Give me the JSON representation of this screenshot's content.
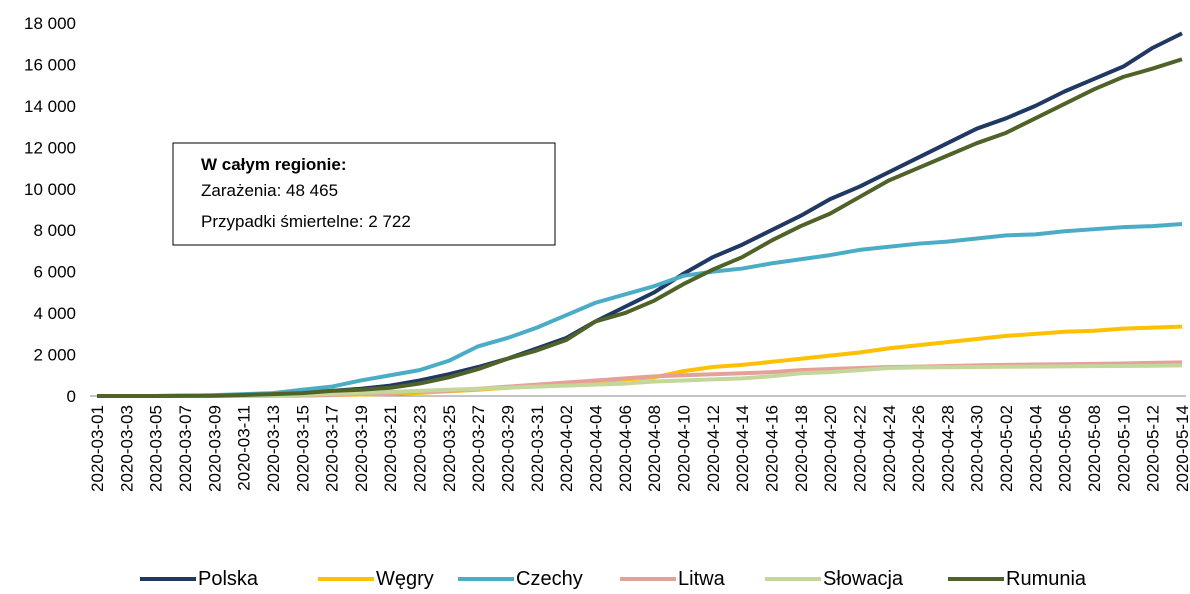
{
  "chart_data": {
    "type": "line",
    "annotation": {
      "title": "W całym regionie:",
      "lines": [
        "Zarażenia: 48 465",
        "Przypadki śmiertelne: 2 722"
      ]
    },
    "categories": [
      "2020-03-01",
      "2020-03-03",
      "2020-03-05",
      "2020-03-07",
      "2020-03-09",
      "2020-03-11",
      "2020-03-13",
      "2020-03-15",
      "2020-03-17",
      "2020-03-19",
      "2020-03-21",
      "2020-03-23",
      "2020-03-25",
      "2020-03-27",
      "2020-03-29",
      "2020-03-31",
      "2020-04-02",
      "2020-04-04",
      "2020-04-06",
      "2020-04-08",
      "2020-04-10",
      "2020-04-12",
      "2020-04-14",
      "2020-04-16",
      "2020-04-18",
      "2020-04-20",
      "2020-04-22",
      "2020-04-24",
      "2020-04-26",
      "2020-04-28",
      "2020-04-30",
      "2020-05-02",
      "2020-05-04",
      "2020-05-06",
      "2020-05-08",
      "2020-05-10",
      "2020-05-12",
      "2020-05-14"
    ],
    "series": [
      {
        "name": "Polska",
        "color": "#1f3864",
        "values": [
          0,
          0,
          0,
          10,
          20,
          30,
          70,
          150,
          250,
          350,
          500,
          750,
          1050,
          1400,
          1800,
          2300,
          2800,
          3600,
          4300,
          5000,
          5900,
          6700,
          7300,
          8000,
          8700,
          9500,
          10100,
          10800,
          11500,
          12200,
          12900,
          13400,
          14000,
          14700,
          15300,
          15900,
          16800,
          17500
        ]
      },
      {
        "name": "Węgry",
        "color": "#ffc000",
        "values": [
          0,
          0,
          0,
          0,
          0,
          10,
          20,
          30,
          50,
          70,
          100,
          150,
          230,
          300,
          400,
          500,
          600,
          700,
          800,
          900,
          1200,
          1400,
          1500,
          1650,
          1800,
          1950,
          2100,
          2300,
          2450,
          2600,
          2750,
          2900,
          3000,
          3100,
          3150,
          3250,
          3300,
          3350
        ]
      },
      {
        "name": "Czechy",
        "color": "#4bacc6",
        "values": [
          0,
          0,
          0,
          10,
          40,
          90,
          140,
          300,
          450,
          750,
          1000,
          1250,
          1700,
          2400,
          2800,
          3300,
          3900,
          4500,
          4900,
          5300,
          5800,
          6000,
          6150,
          6400,
          6600,
          6800,
          7050,
          7200,
          7350,
          7450,
          7600,
          7750,
          7800,
          7950,
          8050,
          8150,
          8200,
          8300
        ]
      },
      {
        "name": "Litwa",
        "color": "#e6a09a",
        "values": [
          0,
          0,
          0,
          0,
          0,
          5,
          10,
          20,
          50,
          100,
          150,
          200,
          250,
          350,
          450,
          550,
          650,
          750,
          850,
          950,
          1000,
          1050,
          1100,
          1150,
          1250,
          1300,
          1350,
          1400,
          1420,
          1450,
          1480,
          1500,
          1520,
          1530,
          1550,
          1570,
          1600,
          1620
        ]
      },
      {
        "name": "Słowacja",
        "color": "#c4d79b",
        "values": [
          0,
          0,
          0,
          0,
          5,
          10,
          30,
          60,
          100,
          150,
          200,
          250,
          300,
          350,
          400,
          450,
          500,
          550,
          600,
          700,
          750,
          800,
          850,
          950,
          1100,
          1150,
          1250,
          1350,
          1380,
          1390,
          1400,
          1410,
          1420,
          1430,
          1440,
          1450,
          1460,
          1480
        ]
      },
      {
        "name": "Rumunia",
        "color": "#4f6228",
        "values": [
          0,
          0,
          0,
          5,
          15,
          50,
          90,
          140,
          250,
          300,
          400,
          600,
          900,
          1300,
          1800,
          2200,
          2700,
          3600,
          4000,
          4600,
          5400,
          6100,
          6700,
          7500,
          8200,
          8800,
          9600,
          10400,
          11000,
          11600,
          12200,
          12700,
          13400,
          14100,
          14800,
          15400,
          15800,
          16250
        ]
      }
    ],
    "ylim": [
      0,
      18000
    ],
    "yticks": [
      0,
      {
        "value": 2000,
        "label": "2 000"
      },
      {
        "value": 4000,
        "label": "4 000"
      },
      {
        "value": 6000,
        "label": "6 000"
      },
      {
        "value": 8000,
        "label": "8 000"
      },
      {
        "value": 10000,
        "label": "10 000"
      },
      {
        "value": 12000,
        "label": "12 000"
      },
      {
        "value": 14000,
        "label": "14 000"
      },
      {
        "value": 16000,
        "label": "16 000"
      },
      {
        "value": 18000,
        "label": "18 000"
      }
    ]
  }
}
